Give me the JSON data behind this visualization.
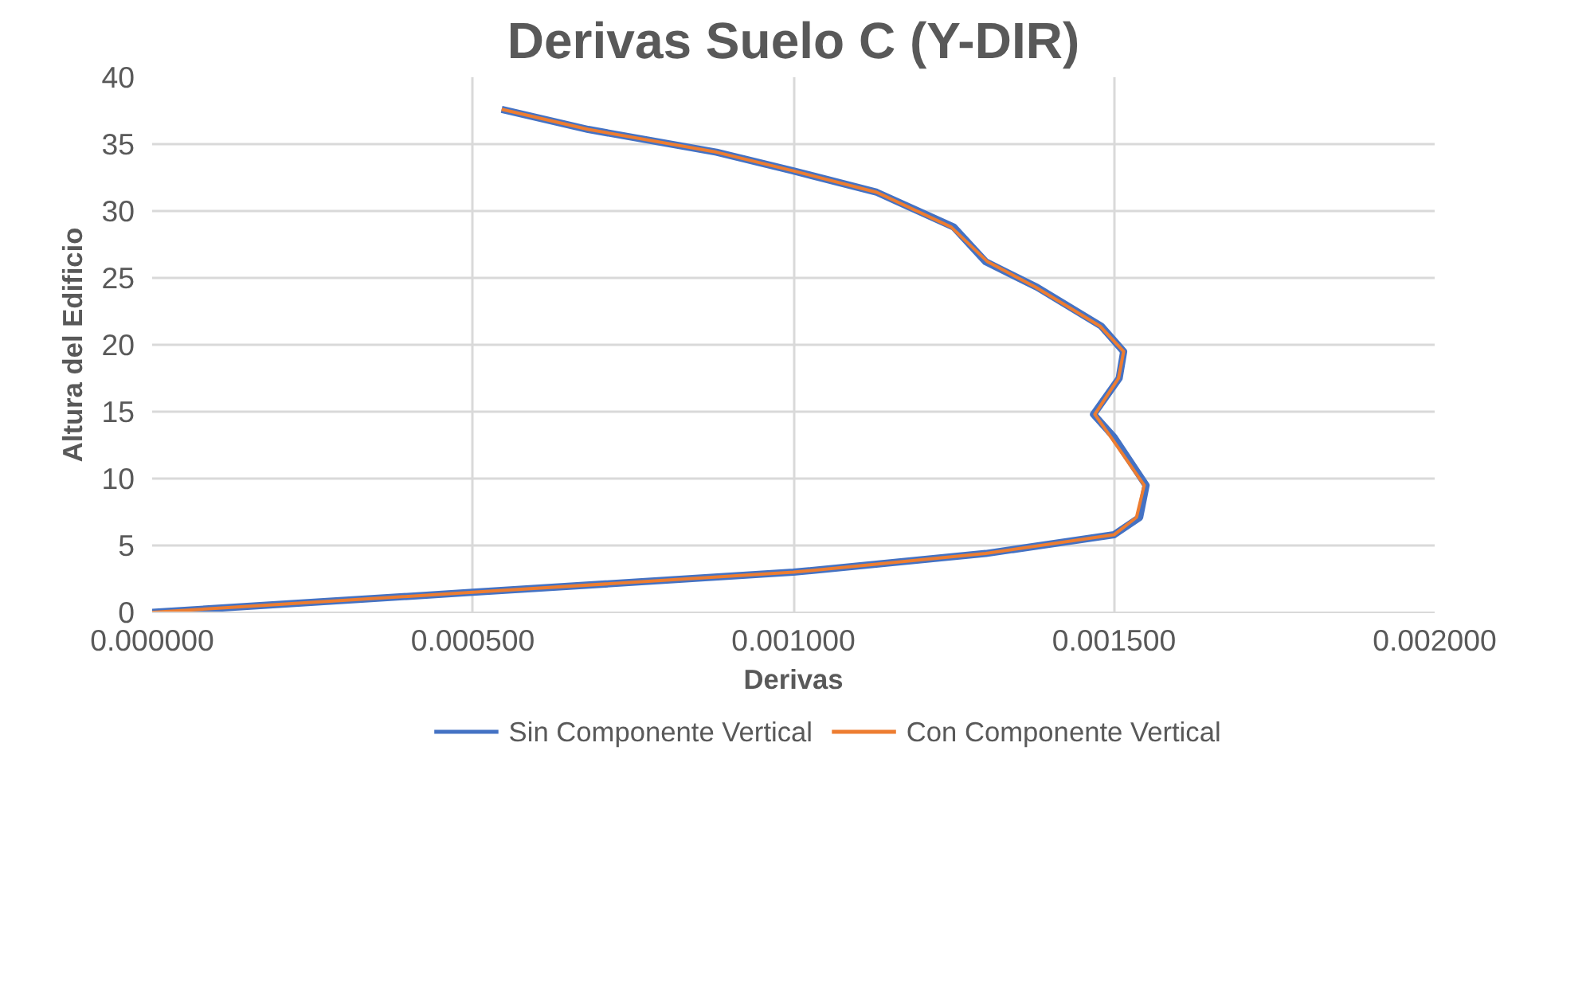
{
  "chart_data": {
    "type": "line",
    "title": "Derivas Suelo C (Y-DIR)",
    "xlabel": "Derivas",
    "ylabel": "Altura del Edificio",
    "xlim": [
      0,
      0.002
    ],
    "xticks": [
      {
        "value": 0,
        "label": "0.000000"
      },
      {
        "value": 0.0005,
        "label": "0.000500"
      },
      {
        "value": 0.001,
        "label": "0.001000"
      },
      {
        "value": 0.0015,
        "label": "0.001500"
      },
      {
        "value": 0.002,
        "label": "0.002000"
      }
    ],
    "ylim": [
      0,
      40
    ],
    "yticks": [
      0,
      5,
      10,
      15,
      20,
      25,
      30,
      35,
      40
    ],
    "grid": true,
    "legend": "bottom",
    "marker": "none",
    "line_style": "solid",
    "series": [
      {
        "name": "Sin Componente Vertical",
        "color": "#4472c4",
        "x": [
          0,
          0.0005,
          0.001,
          0.0013,
          0.0015,
          0.00154,
          0.00155,
          0.0015,
          0.001468,
          0.001508,
          0.001515,
          0.00148,
          0.00138,
          0.0013,
          0.00125,
          0.00113,
          0.001,
          0.00088,
          0.00068,
          0.000545
        ],
        "values": [
          0,
          1.5,
          3.0,
          4.4,
          5.8,
          7.1,
          9.5,
          13.1,
          14.8,
          17.5,
          19.5,
          21.4,
          24.3,
          26.2,
          28.8,
          31.4,
          33.0,
          34.4,
          36.1,
          37.6
        ]
      },
      {
        "name": "Con Componente Vertical",
        "color": "#ed7d31",
        "x": [
          0,
          0.0005,
          0.001,
          0.0013,
          0.0015,
          0.001535,
          0.001547,
          0.001495,
          0.00147,
          0.001507,
          0.001515,
          0.001478,
          0.001378,
          0.001303,
          0.001246,
          0.00113,
          0.001,
          0.00088,
          0.00068,
          0.000545
        ],
        "values": [
          0,
          1.5,
          3.0,
          4.4,
          5.8,
          7.1,
          9.5,
          13.1,
          14.8,
          17.5,
          19.5,
          21.4,
          24.3,
          26.2,
          28.8,
          31.4,
          33.0,
          34.4,
          36.1,
          37.6
        ]
      }
    ]
  }
}
